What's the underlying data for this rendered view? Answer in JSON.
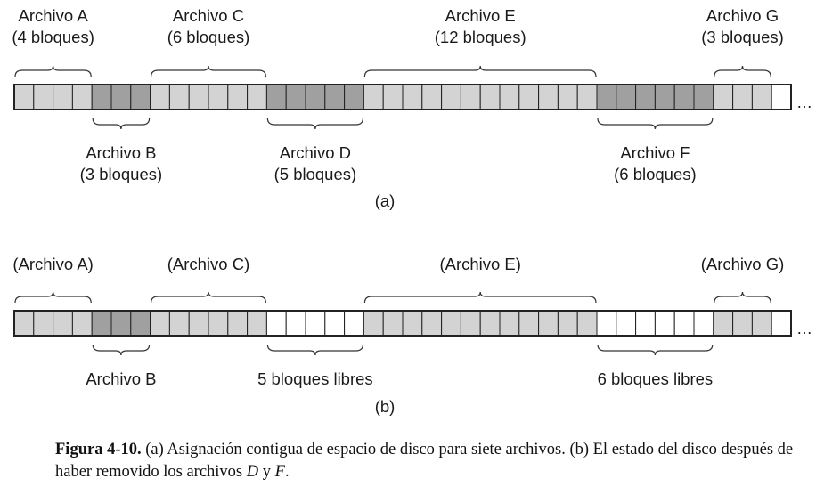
{
  "diagrams": [
    {
      "sublabel": "(a)",
      "block_count": 40,
      "trailing": "…",
      "blocks": [
        "light",
        "light",
        "light",
        "light",
        "dark",
        "dark",
        "dark",
        "light",
        "light",
        "light",
        "light",
        "light",
        "light",
        "dark",
        "dark",
        "dark",
        "dark",
        "dark",
        "light",
        "light",
        "light",
        "light",
        "light",
        "light",
        "light",
        "light",
        "light",
        "light",
        "light",
        "light",
        "dark",
        "dark",
        "dark",
        "dark",
        "dark",
        "dark",
        "light",
        "light",
        "light",
        "free"
      ],
      "files": [
        {
          "id": "a",
          "name": "Archivo A",
          "detail": "(4 bloques)",
          "start": 0,
          "length": 4,
          "side": "top"
        },
        {
          "id": "b",
          "name": "Archivo B",
          "detail": "(3 bloques)",
          "start": 4,
          "length": 3,
          "side": "bottom"
        },
        {
          "id": "c",
          "name": "Archivo C",
          "detail": "(6 bloques)",
          "start": 7,
          "length": 6,
          "side": "top"
        },
        {
          "id": "d",
          "name": "Archivo D",
          "detail": "(5 bloques)",
          "start": 13,
          "length": 5,
          "side": "bottom"
        },
        {
          "id": "e",
          "name": "Archivo E",
          "detail": "(12 bloques)",
          "start": 18,
          "length": 12,
          "side": "top"
        },
        {
          "id": "f",
          "name": "Archivo F",
          "detail": "(6 bloques)",
          "start": 30,
          "length": 6,
          "side": "bottom"
        },
        {
          "id": "g",
          "name": "Archivo G",
          "detail": "(3 bloques)",
          "start": 36,
          "length": 3,
          "side": "top"
        }
      ]
    },
    {
      "sublabel": "(b)",
      "block_count": 40,
      "trailing": "…",
      "blocks": [
        "light",
        "light",
        "light",
        "light",
        "dark",
        "dark",
        "dark",
        "light",
        "light",
        "light",
        "light",
        "light",
        "light",
        "free",
        "free",
        "free",
        "free",
        "free",
        "light",
        "light",
        "light",
        "light",
        "light",
        "light",
        "light",
        "light",
        "light",
        "light",
        "light",
        "light",
        "free",
        "free",
        "free",
        "free",
        "free",
        "free",
        "light",
        "light",
        "light",
        "free"
      ],
      "files": [
        {
          "id": "a",
          "name": "(Archivo A)",
          "start": 0,
          "length": 4,
          "side": "top"
        },
        {
          "id": "b",
          "name": "Archivo B",
          "start": 4,
          "length": 3,
          "side": "bottom"
        },
        {
          "id": "c",
          "name": "(Archivo C)",
          "start": 7,
          "length": 6,
          "side": "top"
        },
        {
          "id": "d",
          "name": "5 bloques libres",
          "start": 13,
          "length": 5,
          "side": "bottom"
        },
        {
          "id": "e",
          "name": "(Archivo E)",
          "start": 18,
          "length": 12,
          "side": "top"
        },
        {
          "id": "f",
          "name": "6 bloques libres",
          "start": 30,
          "length": 6,
          "side": "bottom"
        },
        {
          "id": "g",
          "name": "(Archivo G)",
          "start": 36,
          "length": 3,
          "side": "top"
        }
      ]
    }
  ],
  "colors": {
    "light": "#d3d3d3",
    "dark": "#a0a0a0",
    "free": "#ffffff",
    "outline": "#222222"
  },
  "caption": {
    "figure_label": "Figura 4-10.",
    "text_part1": " (a)  Asignación contigua de espacio de disco para siete archivos.  (b) El estado del disco después de haber removido los archivos ",
    "file_d": "D",
    "text_y": " y ",
    "file_f": "F",
    "text_end": "."
  }
}
